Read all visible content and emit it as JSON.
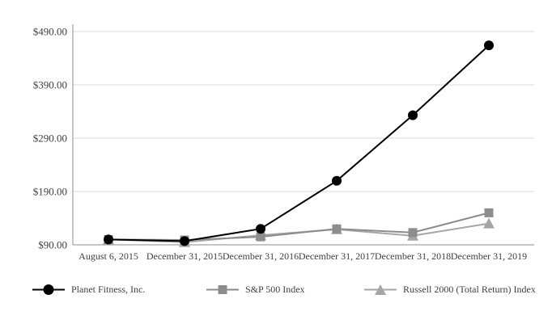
{
  "chart_data": {
    "type": "line",
    "title": "",
    "categories": [
      "August 6, 2015",
      "December 31, 2015",
      "December 31, 2016",
      "December 31, 2017",
      "December 31, 2018",
      "December 31, 2019"
    ],
    "series": [
      {
        "name": "Planet Fitness, Inc.",
        "marker": "circle",
        "color": "#000000",
        "values": [
          100,
          97,
          120,
          210,
          333,
          464
        ]
      },
      {
        "name": "S&P 500 Index",
        "marker": "square",
        "color": "#8c8c8c",
        "values": [
          100,
          99,
          105,
          120,
          113,
          150
        ]
      },
      {
        "name": "Russell 2000 (Total Return) Index",
        "marker": "triangle",
        "color": "#a6a6a6",
        "values": [
          100,
          95,
          108,
          119,
          107,
          130
        ]
      }
    ],
    "ylim": [
      90,
      490
    ],
    "yticks": [
      90,
      190,
      290,
      390,
      490
    ],
    "ytick_labels": [
      "$90.00",
      "$190.00",
      "$290.00",
      "$390.00",
      "$490.00"
    ],
    "grid": true,
    "gridline_color": "#d9d9d9",
    "axis_color": "#8c8c8c",
    "text_color": "#404040",
    "legend_position": "bottom"
  }
}
